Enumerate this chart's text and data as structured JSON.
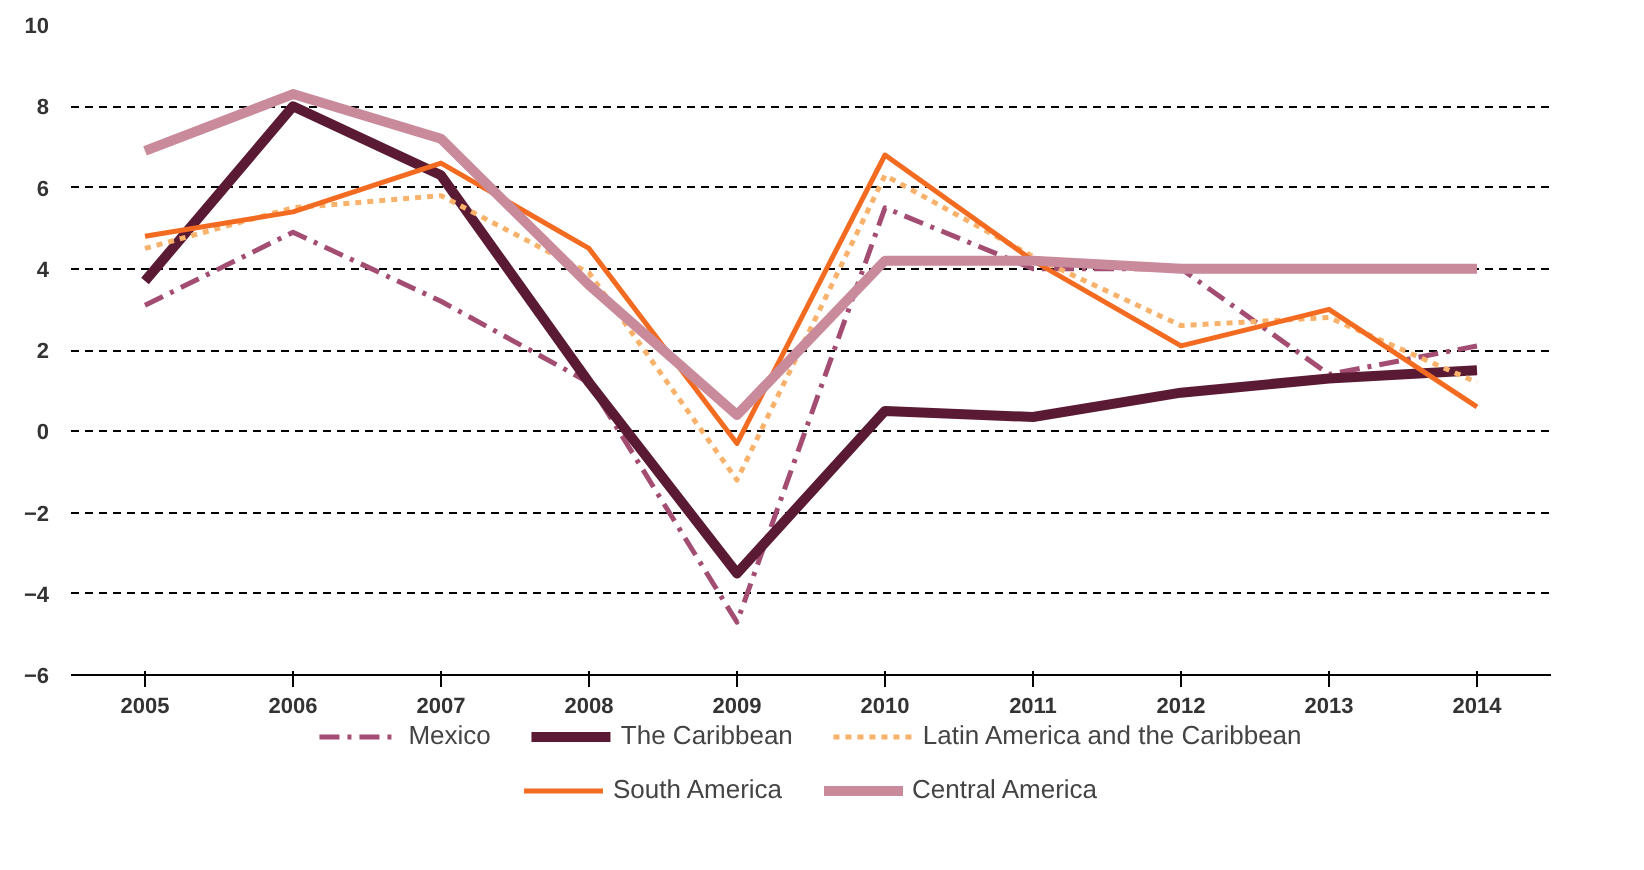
{
  "chart_data": {
    "type": "line",
    "categories": [
      "2005",
      "2006",
      "2007",
      "2008",
      "2009",
      "2010",
      "2011",
      "2012",
      "2013",
      "2014"
    ],
    "ylim": [
      -6,
      10
    ],
    "yticks": [
      -6,
      -4,
      -2,
      0,
      2,
      4,
      6,
      8,
      10
    ],
    "grid": "y",
    "legend": "bottom",
    "series": [
      {
        "name": "Mexico",
        "color": "#a34d73",
        "line_style": "dashed",
        "values": [
          3.1,
          4.9,
          3.2,
          1.2,
          -4.7,
          5.5,
          4.0,
          4.0,
          1.4,
          2.1
        ]
      },
      {
        "name": "The Caribbean",
        "color": "#5a1a33",
        "line_style": "solid",
        "values": [
          3.7,
          8.0,
          6.3,
          1.2,
          -3.5,
          0.5,
          0.35,
          0.95,
          1.3,
          1.5
        ]
      },
      {
        "name": "Latin America and the Caribbean",
        "color": "#f9b26b",
        "line_style": "dotted",
        "values": [
          4.5,
          5.5,
          5.8,
          3.9,
          -1.2,
          6.3,
          4.3,
          2.6,
          2.8,
          1.2
        ]
      },
      {
        "name": "South America",
        "color": "#f26b21",
        "line_style": "solid",
        "values": [
          4.8,
          5.4,
          6.6,
          4.5,
          -0.3,
          6.8,
          4.2,
          2.1,
          3.0,
          0.6
        ]
      },
      {
        "name": "Central America",
        "color": "#c98a9b",
        "line_style": "solid",
        "values": [
          6.9,
          8.3,
          7.2,
          3.6,
          0.4,
          4.2,
          4.2,
          4.0,
          4.0,
          4.0
        ]
      }
    ]
  }
}
